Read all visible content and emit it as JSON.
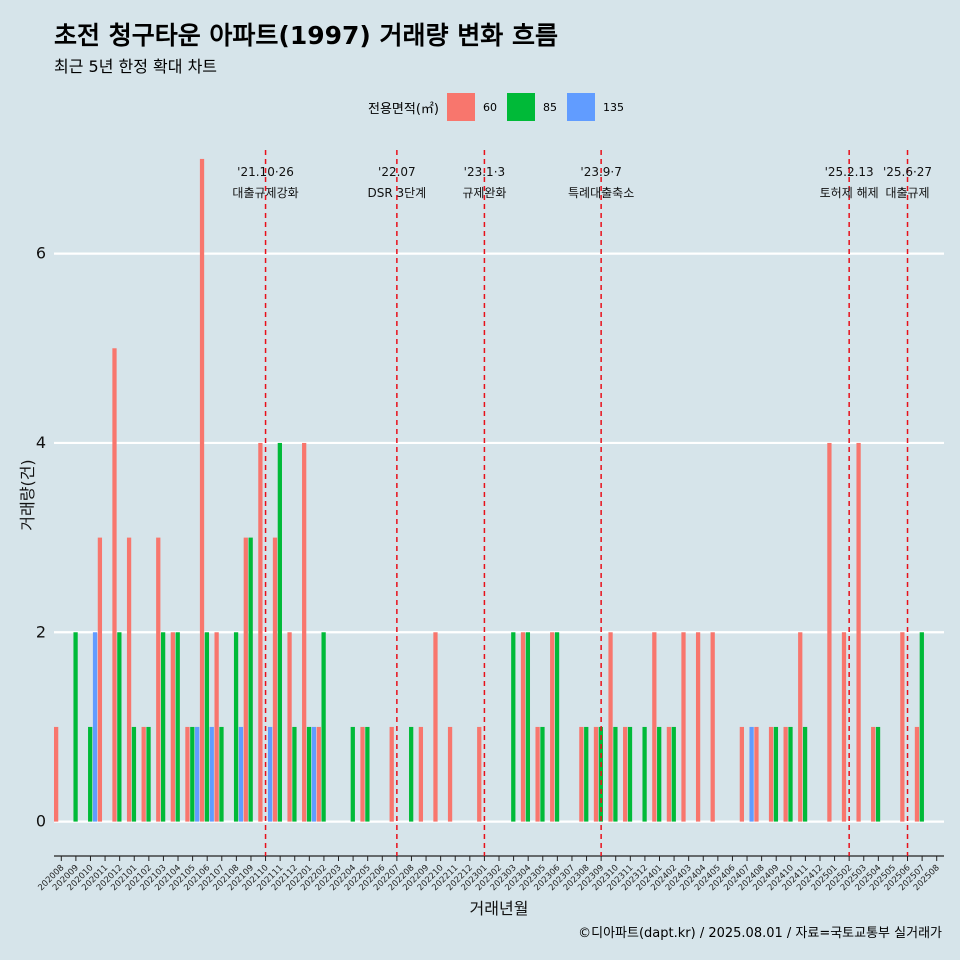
{
  "title": "초전 청구타운 아파트(1997) 거래량 변화 흐름",
  "subtitle": "최근 5년 한정 확대 차트",
  "caption": "©디아파트(dapt.kr) / 2025.08.01 / 자료=국토교통부 실거래가",
  "legend": {
    "title": "전용면적(㎡)",
    "items": [
      {
        "label": "60",
        "color": "#f8766d"
      },
      {
        "label": "85",
        "color": "#00ba38"
      },
      {
        "label": "135",
        "color": "#619cff"
      }
    ]
  },
  "chart_data": {
    "type": "bar",
    "title": "초전 청구타운 아파트(1997) 거래량 변화 흐름",
    "xlabel": "거래년월",
    "ylabel": "거래량(건)",
    "ylim": [
      -0.3,
      7.2
    ],
    "yticks": [
      0,
      2,
      4,
      6
    ],
    "grid": true,
    "legend_position": "top",
    "categories": [
      "202008",
      "202009",
      "202010",
      "202011",
      "202012",
      "202101",
      "202102",
      "202103",
      "202104",
      "202105",
      "202106",
      "202107",
      "202108",
      "202109",
      "202110",
      "202111",
      "202112",
      "202201",
      "202202",
      "202203",
      "202204",
      "202205",
      "202206",
      "202207",
      "202208",
      "202209",
      "202210",
      "202211",
      "202212",
      "202301",
      "202302",
      "202303",
      "202304",
      "202305",
      "202306",
      "202307",
      "202308",
      "202309",
      "202310",
      "202311",
      "202312",
      "202401",
      "202402",
      "202403",
      "202404",
      "202405",
      "202406",
      "202407",
      "202408",
      "202409",
      "202410",
      "202411",
      "202412",
      "202501",
      "202502",
      "202503",
      "202504",
      "202505",
      "202506",
      "202507",
      "202508"
    ],
    "bars": [
      {
        "month": "202008",
        "area": "60",
        "value": 1
      },
      {
        "month": "202009",
        "area": "85",
        "value": 2
      },
      {
        "month": "202010",
        "area": "85",
        "value": 1
      },
      {
        "month": "202010",
        "area": "135",
        "value": 2
      },
      {
        "month": "202011",
        "area": "60",
        "value": 3
      },
      {
        "month": "202012",
        "area": "60",
        "value": 5
      },
      {
        "month": "202012",
        "area": "85",
        "value": 2
      },
      {
        "month": "202101",
        "area": "60",
        "value": 3
      },
      {
        "month": "202101",
        "area": "85",
        "value": 1
      },
      {
        "month": "202102",
        "area": "60",
        "value": 1
      },
      {
        "month": "202102",
        "area": "85",
        "value": 1
      },
      {
        "month": "202103",
        "area": "60",
        "value": 3
      },
      {
        "month": "202103",
        "area": "85",
        "value": 2
      },
      {
        "month": "202104",
        "area": "60",
        "value": 2
      },
      {
        "month": "202104",
        "area": "85",
        "value": 2
      },
      {
        "month": "202105",
        "area": "60",
        "value": 1
      },
      {
        "month": "202105",
        "area": "85",
        "value": 1
      },
      {
        "month": "202105",
        "area": "135",
        "value": 1
      },
      {
        "month": "202106",
        "area": "60",
        "value": 7
      },
      {
        "month": "202106",
        "area": "85",
        "value": 2
      },
      {
        "month": "202106",
        "area": "135",
        "value": 1
      },
      {
        "month": "202107",
        "area": "60",
        "value": 2
      },
      {
        "month": "202107",
        "area": "85",
        "value": 1
      },
      {
        "month": "202108",
        "area": "85",
        "value": 2
      },
      {
        "month": "202108",
        "area": "135",
        "value": 1
      },
      {
        "month": "202109",
        "area": "60",
        "value": 3
      },
      {
        "month": "202109",
        "area": "85",
        "value": 3
      },
      {
        "month": "202110",
        "area": "60",
        "value": 4
      },
      {
        "month": "202110",
        "area": "135",
        "value": 1
      },
      {
        "month": "202111",
        "area": "60",
        "value": 3
      },
      {
        "month": "202111",
        "area": "85",
        "value": 4
      },
      {
        "month": "202112",
        "area": "60",
        "value": 2
      },
      {
        "month": "202112",
        "area": "85",
        "value": 1
      },
      {
        "month": "202201",
        "area": "60",
        "value": 4
      },
      {
        "month": "202201",
        "area": "85",
        "value": 1
      },
      {
        "month": "202201",
        "area": "135",
        "value": 1
      },
      {
        "month": "202202",
        "area": "60",
        "value": 1
      },
      {
        "month": "202202",
        "area": "85",
        "value": 2
      },
      {
        "month": "202204",
        "area": "85",
        "value": 1
      },
      {
        "month": "202205",
        "area": "60",
        "value": 1
      },
      {
        "month": "202205",
        "area": "85",
        "value": 1
      },
      {
        "month": "202207",
        "area": "60",
        "value": 1
      },
      {
        "month": "202208",
        "area": "85",
        "value": 1
      },
      {
        "month": "202209",
        "area": "60",
        "value": 1
      },
      {
        "month": "202210",
        "area": "60",
        "value": 2
      },
      {
        "month": "202211",
        "area": "60",
        "value": 1
      },
      {
        "month": "202301",
        "area": "60",
        "value": 1
      },
      {
        "month": "202303",
        "area": "85",
        "value": 2
      },
      {
        "month": "202304",
        "area": "60",
        "value": 2
      },
      {
        "month": "202304",
        "area": "85",
        "value": 2
      },
      {
        "month": "202305",
        "area": "60",
        "value": 1
      },
      {
        "month": "202305",
        "area": "85",
        "value": 1
      },
      {
        "month": "202306",
        "area": "60",
        "value": 2
      },
      {
        "month": "202306",
        "area": "85",
        "value": 2
      },
      {
        "month": "202308",
        "area": "60",
        "value": 1
      },
      {
        "month": "202308",
        "area": "85",
        "value": 1
      },
      {
        "month": "202309",
        "area": "60",
        "value": 1
      },
      {
        "month": "202309",
        "area": "85",
        "value": 1
      },
      {
        "month": "202310",
        "area": "60",
        "value": 2
      },
      {
        "month": "202310",
        "area": "85",
        "value": 1
      },
      {
        "month": "202311",
        "area": "60",
        "value": 1
      },
      {
        "month": "202311",
        "area": "85",
        "value": 1
      },
      {
        "month": "202312",
        "area": "85",
        "value": 1
      },
      {
        "month": "202401",
        "area": "60",
        "value": 2
      },
      {
        "month": "202401",
        "area": "85",
        "value": 1
      },
      {
        "month": "202402",
        "area": "60",
        "value": 1
      },
      {
        "month": "202402",
        "area": "85",
        "value": 1
      },
      {
        "month": "202403",
        "area": "60",
        "value": 2
      },
      {
        "month": "202404",
        "area": "60",
        "value": 2
      },
      {
        "month": "202405",
        "area": "60",
        "value": 2
      },
      {
        "month": "202407",
        "area": "60",
        "value": 1
      },
      {
        "month": "202407",
        "area": "135",
        "value": 1
      },
      {
        "month": "202408",
        "area": "60",
        "value": 1
      },
      {
        "month": "202409",
        "area": "60",
        "value": 1
      },
      {
        "month": "202409",
        "area": "85",
        "value": 1
      },
      {
        "month": "202410",
        "area": "60",
        "value": 1
      },
      {
        "month": "202410",
        "area": "85",
        "value": 1
      },
      {
        "month": "202411",
        "area": "60",
        "value": 2
      },
      {
        "month": "202411",
        "area": "85",
        "value": 1
      },
      {
        "month": "202501",
        "area": "60",
        "value": 4
      },
      {
        "month": "202502",
        "area": "60",
        "value": 2
      },
      {
        "month": "202503",
        "area": "60",
        "value": 4
      },
      {
        "month": "202504",
        "area": "60",
        "value": 1
      },
      {
        "month": "202504",
        "area": "85",
        "value": 1
      },
      {
        "month": "202506",
        "area": "60",
        "value": 2
      },
      {
        "month": "202507",
        "area": "60",
        "value": 1
      },
      {
        "month": "202507",
        "area": "85",
        "value": 2
      }
    ],
    "annotations": [
      {
        "x": "202110",
        "date": "'21.10·26",
        "label": "대출규제강화"
      },
      {
        "x": "202207",
        "date": "'22.07",
        "label": "DSR 3단계"
      },
      {
        "x": "202301",
        "date": "'23.1·3",
        "label": "규제완화"
      },
      {
        "x": "202309",
        "date": "'23.9·7",
        "label": "특례대출축소"
      },
      {
        "x": "202502",
        "date": "'25.2.13",
        "label": "토허제 해제"
      },
      {
        "x": "202506",
        "date": "'25.6·27",
        "label": "대출규제"
      }
    ]
  }
}
